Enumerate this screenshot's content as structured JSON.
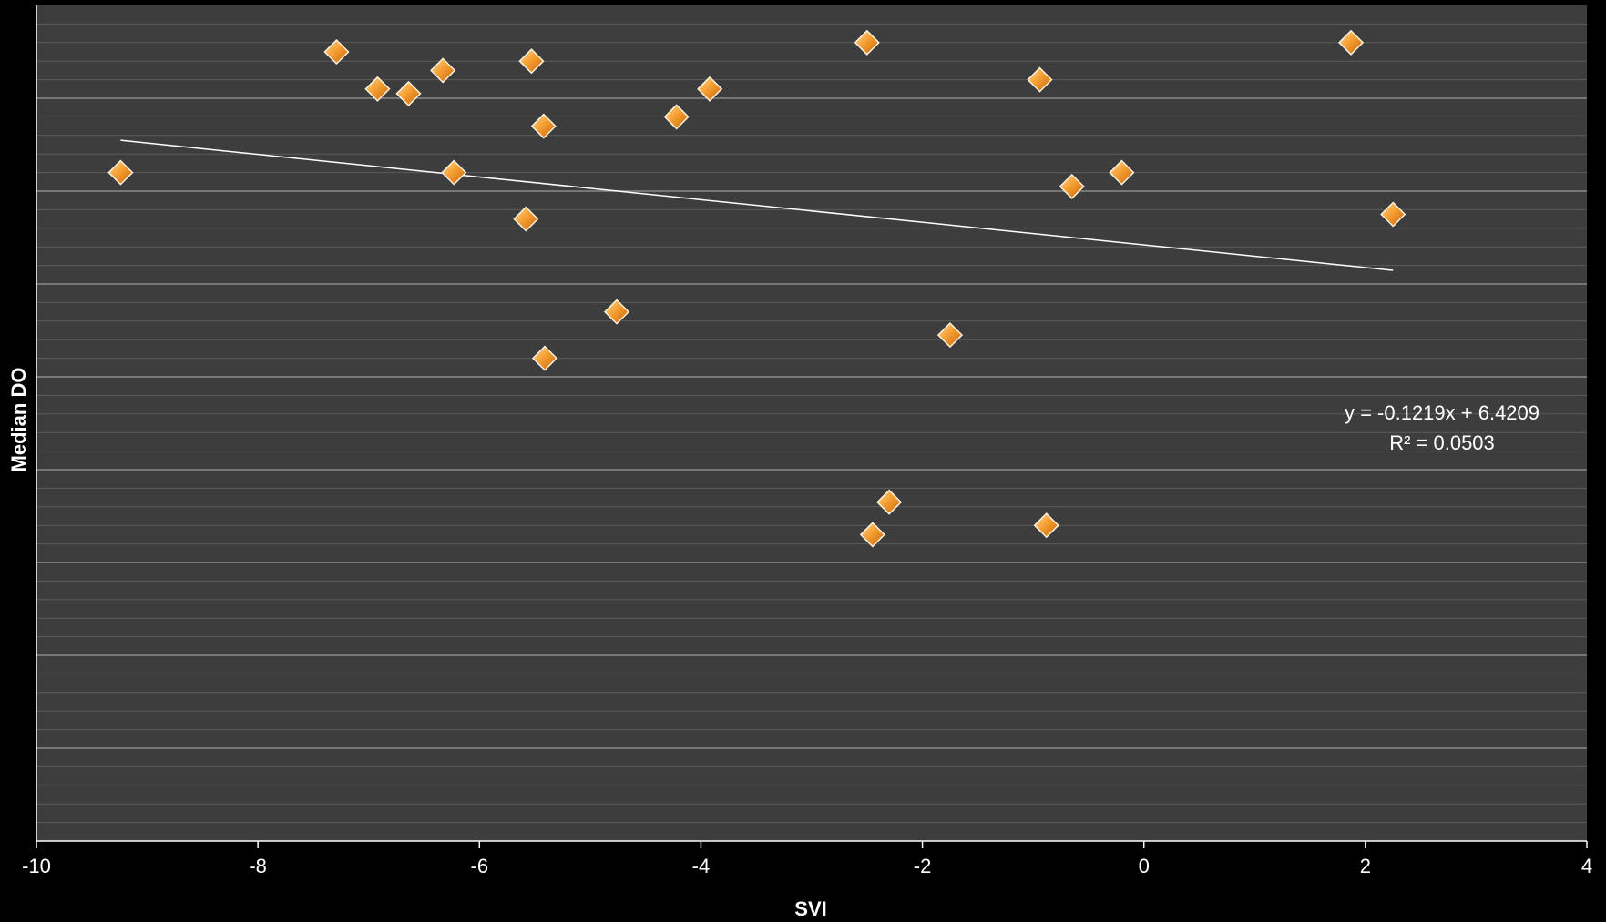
{
  "chart_data": {
    "type": "scatter",
    "title": "",
    "xlabel": "SVI",
    "ylabel": "Median DO",
    "xlim": [
      -10,
      4
    ],
    "ylim": [
      0,
      9
    ],
    "x_ticks": [
      -10,
      -8,
      -6,
      -4,
      -2,
      0,
      2,
      4
    ],
    "grid": "horizontal",
    "series": [
      {
        "marker": "diamond",
        "color": "#f08a1c",
        "points": [
          {
            "x": -9.24,
            "y": 7.2
          },
          {
            "x": -7.29,
            "y": 8.5
          },
          {
            "x": -6.92,
            "y": 8.1
          },
          {
            "x": -6.64,
            "y": 8.05
          },
          {
            "x": -6.33,
            "y": 8.3
          },
          {
            "x": -6.23,
            "y": 7.2
          },
          {
            "x": -5.53,
            "y": 8.4
          },
          {
            "x": -5.42,
            "y": 7.7
          },
          {
            "x": -5.58,
            "y": 6.7
          },
          {
            "x": -5.41,
            "y": 5.2
          },
          {
            "x": -4.76,
            "y": 5.7
          },
          {
            "x": -4.22,
            "y": 7.8
          },
          {
            "x": -3.92,
            "y": 8.1
          },
          {
            "x": -2.5,
            "y": 8.6
          },
          {
            "x": -2.3,
            "y": 3.65
          },
          {
            "x": -2.45,
            "y": 3.3
          },
          {
            "x": -1.75,
            "y": 5.45
          },
          {
            "x": -0.94,
            "y": 8.2
          },
          {
            "x": -0.88,
            "y": 3.4
          },
          {
            "x": -0.65,
            "y": 7.05
          },
          {
            "x": -0.2,
            "y": 7.2
          },
          {
            "x": 1.87,
            "y": 8.6
          },
          {
            "x": 2.25,
            "y": 6.75
          }
        ]
      }
    ],
    "trendline": {
      "type": "linear",
      "slope": -0.1219,
      "intercept": 6.4209,
      "x_range": [
        -9.24,
        2.25
      ],
      "color": "#ffffff",
      "equation_label": "y = -0.1219x + 6.4209",
      "r2_label": "R² = 0.0503"
    },
    "plot_background": "#3d3d3d",
    "page_background": "#000000",
    "minor_grid_color": "#5c5c5c",
    "major_grid_color": "#8a8a8a"
  }
}
